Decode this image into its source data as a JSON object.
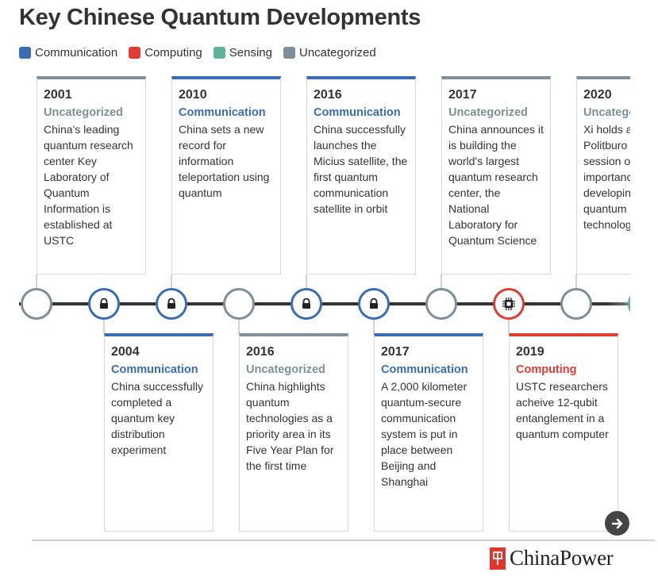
{
  "title": "Key Chinese Quantum Developments",
  "legend": [
    {
      "label": "Communication",
      "color": "#3a6db3"
    },
    {
      "label": "Computing",
      "color": "#e03c31"
    },
    {
      "label": "Sensing",
      "color": "#5fb39e"
    },
    {
      "label": "Uncategorized",
      "color": "#7f8e99"
    }
  ],
  "category_colors": {
    "Communication": "#3a6db3",
    "Computing": "#e03c31",
    "Sensing": "#5fb39e",
    "Uncategorized": "#7f8e99"
  },
  "events": [
    {
      "year": "2001",
      "category": "Uncategorized",
      "icon": "none",
      "description": "China's leading quantum research center Key Laboratory of Quantum Information is established at USTC"
    },
    {
      "year": "2004",
      "category": "Communication",
      "icon": "lock-icon",
      "description": "China successfully completed a quantum key distribution experiment"
    },
    {
      "year": "2010",
      "category": "Communication",
      "icon": "lock-icon",
      "description": "China sets a new record for information teleportation using quantum"
    },
    {
      "year": "2016",
      "category": "Uncategorized",
      "icon": "none",
      "description": "China highlights quantum technologies as a priority area in its Five Year Plan for the first time"
    },
    {
      "year": "2016",
      "category": "Communication",
      "icon": "lock-icon",
      "description": "China successfully launches the Micius satellite, the first quantum communication satellite in orbit"
    },
    {
      "year": "2017",
      "category": "Communication",
      "icon": "lock-icon",
      "description": "A 2,000 kilometer quantum-secure communication system is put in place between Beijing and Shanghai"
    },
    {
      "year": "2017",
      "category": "Uncategorized",
      "icon": "none",
      "description": "China announces it is building the world's largest quantum research center, the National Laboratory for Quantum Science"
    },
    {
      "year": "2019",
      "category": "Computing",
      "icon": "chip-icon",
      "description": "USTC researchers acheive 12-qubit entanglement in a quantum computer"
    },
    {
      "year": "2020",
      "category": "Uncategorized",
      "icon": "none",
      "description": "Xi holds a Politburo study session on the importance of developing China's quantum technology"
    },
    {
      "year": "",
      "category": "Sensing",
      "icon": "none",
      "description": ""
    }
  ],
  "brand": {
    "name": "ChinaPower",
    "mark": "P"
  },
  "controls": {
    "next_icon": "arrow-right-icon"
  }
}
